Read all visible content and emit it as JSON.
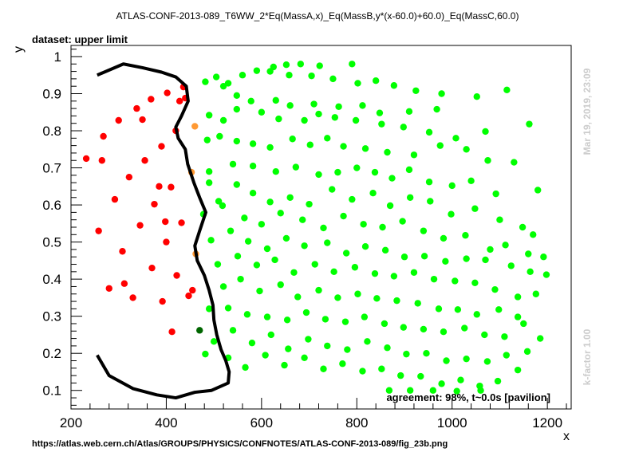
{
  "chart_data": {
    "type": "scatter",
    "title": "ATLAS-CONF-2013-089_T6WW_2*Eq(MassA,x)_Eq(MassB,y*(x-60.0)+60.0)_Eq(MassC,60.0)",
    "subtitle": "dataset: upper limit",
    "xlabel": "x",
    "ylabel": "y",
    "xlim": [
      200,
      1250
    ],
    "ylim": [
      0.05,
      1.03
    ],
    "xticks": [
      200,
      400,
      600,
      800,
      1000,
      1200
    ],
    "yticks": [
      0.1,
      0.2,
      0.3,
      0.4,
      0.5,
      0.6,
      0.7,
      0.8,
      0.9,
      1
    ],
    "grid": false,
    "colors": {
      "excluded": "#ff0000",
      "allowed": "#00ff00",
      "borderline": "#ff9933",
      "dark": "#006600",
      "contour": "#000000"
    },
    "series": [
      {
        "color": "#ff0000",
        "points": [
          [
            232,
            0.725
          ],
          [
            258,
            0.53
          ],
          [
            265,
            0.72
          ],
          [
            268,
            0.785
          ],
          [
            280,
            0.375
          ],
          [
            292,
            0.615
          ],
          [
            300,
            0.828
          ],
          [
            308,
            0.475
          ],
          [
            312,
            0.388
          ],
          [
            322,
            0.675
          ],
          [
            330,
            0.35
          ],
          [
            338,
            0.86
          ],
          [
            345,
            0.545
          ],
          [
            350,
            0.83
          ],
          [
            355,
            0.72
          ],
          [
            368,
            0.885
          ],
          [
            370,
            0.43
          ],
          [
            375,
            0.602
          ],
          [
            385,
            0.65
          ],
          [
            390,
            0.758
          ],
          [
            392,
            0.34
          ],
          [
            398,
            0.555
          ],
          [
            400,
            0.5
          ],
          [
            402,
            0.902
          ],
          [
            410,
            0.648
          ],
          [
            412,
            0.258
          ],
          [
            420,
            0.8
          ],
          [
            422,
            0.41
          ],
          [
            428,
            0.88
          ],
          [
            432,
            0.552
          ],
          [
            436,
            0.918
          ],
          [
            440,
            0.888
          ],
          [
            447,
            0.355
          ],
          [
            455,
            0.37
          ]
        ]
      },
      {
        "color": "#ff9933",
        "points": [
          [
            453,
            0.688
          ],
          [
            460,
            0.812
          ],
          [
            462,
            0.468
          ]
        ]
      },
      {
        "color": "#006600",
        "points": [
          [
            470,
            0.262
          ]
        ]
      },
      {
        "color": "#00ff00",
        "points": [
          [
            482,
            0.932
          ],
          [
            505,
            0.945
          ],
          [
            530,
            0.928
          ],
          [
            560,
            0.95
          ],
          [
            590,
            0.962
          ],
          [
            625,
            0.972
          ],
          [
            652,
            0.978
          ],
          [
            682,
            0.98
          ],
          [
            722,
            0.975
          ],
          [
            790,
            0.98
          ],
          [
            618,
            0.96
          ],
          [
            658,
            0.95
          ],
          [
            705,
            0.948
          ],
          [
            750,
            0.94
          ],
          [
            802,
            0.928
          ],
          [
            840,
            0.935
          ],
          [
            878,
            0.922
          ],
          [
            924,
            0.908
          ],
          [
            978,
            0.9
          ],
          [
            1052,
            0.892
          ],
          [
            1115,
            0.91
          ],
          [
            520,
            0.92
          ],
          [
            548,
            0.895
          ],
          [
            578,
            0.88
          ],
          [
            630,
            0.882
          ],
          [
            660,
            0.868
          ],
          [
            710,
            0.872
          ],
          [
            762,
            0.865
          ],
          [
            812,
            0.868
          ],
          [
            848,
            0.848
          ],
          [
            910,
            0.852
          ],
          [
            968,
            0.858
          ],
          [
            490,
            0.842
          ],
          [
            520,
            0.828
          ],
          [
            548,
            0.858
          ],
          [
            600,
            0.85
          ],
          [
            636,
            0.832
          ],
          [
            690,
            0.828
          ],
          [
            720,
            0.845
          ],
          [
            754,
            0.836
          ],
          [
            798,
            0.828
          ],
          [
            852,
            0.818
          ],
          [
            898,
            0.81
          ],
          [
            952,
            0.796
          ],
          [
            1008,
            0.78
          ],
          [
            1070,
            0.798
          ],
          [
            1162,
            0.818
          ],
          [
            486,
            0.775
          ],
          [
            512,
            0.785
          ],
          [
            548,
            0.772
          ],
          [
            582,
            0.765
          ],
          [
            618,
            0.755
          ],
          [
            665,
            0.778
          ],
          [
            702,
            0.762
          ],
          [
            738,
            0.78
          ],
          [
            772,
            0.758
          ],
          [
            818,
            0.752
          ],
          [
            864,
            0.742
          ],
          [
            920,
            0.735
          ],
          [
            975,
            0.76
          ],
          [
            1030,
            0.75
          ],
          [
            1075,
            0.72
          ],
          [
            1130,
            0.715
          ],
          [
            1180,
            0.64
          ],
          [
            490,
            0.69
          ],
          [
            540,
            0.71
          ],
          [
            582,
            0.705
          ],
          [
            630,
            0.69
          ],
          [
            672,
            0.702
          ],
          [
            720,
            0.682
          ],
          [
            760,
            0.688
          ],
          [
            800,
            0.7
          ],
          [
            838,
            0.688
          ],
          [
            874,
            0.672
          ],
          [
            910,
            0.695
          ],
          [
            952,
            0.662
          ],
          [
            1000,
            0.652
          ],
          [
            1040,
            0.665
          ],
          [
            1092,
            0.63
          ],
          [
            490,
            0.66
          ],
          [
            510,
            0.61
          ],
          [
            548,
            0.655
          ],
          [
            582,
            0.632
          ],
          [
            618,
            0.608
          ],
          [
            660,
            0.62
          ],
          [
            700,
            0.602
          ],
          [
            748,
            0.642
          ],
          [
            790,
            0.615
          ],
          [
            834,
            0.632
          ],
          [
            870,
            0.598
          ],
          [
            912,
            0.62
          ],
          [
            954,
            0.61
          ],
          [
            998,
            0.575
          ],
          [
            1048,
            0.59
          ],
          [
            1100,
            0.56
          ],
          [
            1148,
            0.54
          ],
          [
            1170,
            0.52
          ],
          [
            478,
            0.575
          ],
          [
            518,
            0.598
          ],
          [
            564,
            0.565
          ],
          [
            600,
            0.548
          ],
          [
            640,
            0.578
          ],
          [
            686,
            0.56
          ],
          [
            730,
            0.538
          ],
          [
            772,
            0.57
          ],
          [
            814,
            0.548
          ],
          [
            854,
            0.54
          ],
          [
            896,
            0.556
          ],
          [
            940,
            0.53
          ],
          [
            982,
            0.51
          ],
          [
            1028,
            0.518
          ],
          [
            1080,
            0.48
          ],
          [
            1112,
            0.492
          ],
          [
            1160,
            0.468
          ],
          [
            494,
            0.505
          ],
          [
            535,
            0.53
          ],
          [
            572,
            0.502
          ],
          [
            612,
            0.482
          ],
          [
            652,
            0.51
          ],
          [
            690,
            0.49
          ],
          [
            738,
            0.498
          ],
          [
            778,
            0.47
          ],
          [
            818,
            0.488
          ],
          [
            860,
            0.478
          ],
          [
            900,
            0.46
          ],
          [
            942,
            0.462
          ],
          [
            986,
            0.448
          ],
          [
            1030,
            0.455
          ],
          [
            1070,
            0.452
          ],
          [
            1124,
            0.436
          ],
          [
            1164,
            0.42
          ],
          [
            1192,
            0.46
          ],
          [
            508,
            0.44
          ],
          [
            550,
            0.462
          ],
          [
            590,
            0.438
          ],
          [
            628,
            0.452
          ],
          [
            668,
            0.418
          ],
          [
            712,
            0.44
          ],
          [
            752,
            0.42
          ],
          [
            796,
            0.432
          ],
          [
            838,
            0.415
          ],
          [
            878,
            0.408
          ],
          [
            920,
            0.418
          ],
          [
            962,
            0.4
          ],
          [
            1006,
            0.395
          ],
          [
            1048,
            0.39
          ],
          [
            1090,
            0.372
          ],
          [
            1138,
            0.352
          ],
          [
            1176,
            0.36
          ],
          [
            1198,
            0.412
          ],
          [
            520,
            0.38
          ],
          [
            556,
            0.4
          ],
          [
            596,
            0.368
          ],
          [
            640,
            0.385
          ],
          [
            676,
            0.352
          ],
          [
            720,
            0.37
          ],
          [
            760,
            0.35
          ],
          [
            802,
            0.36
          ],
          [
            842,
            0.348
          ],
          [
            884,
            0.342
          ],
          [
            928,
            0.335
          ],
          [
            972,
            0.32
          ],
          [
            1012,
            0.318
          ],
          [
            1052,
            0.305
          ],
          [
            1098,
            0.318
          ],
          [
            1138,
            0.298
          ],
          [
            490,
            0.32
          ],
          [
            530,
            0.322
          ],
          [
            570,
            0.305
          ],
          [
            612,
            0.298
          ],
          [
            654,
            0.29
          ],
          [
            694,
            0.31
          ],
          [
            734,
            0.292
          ],
          [
            776,
            0.285
          ],
          [
            816,
            0.298
          ],
          [
            858,
            0.28
          ],
          [
            898,
            0.27
          ],
          [
            940,
            0.265
          ],
          [
            982,
            0.258
          ],
          [
            1026,
            0.268
          ],
          [
            1068,
            0.25
          ],
          [
            1110,
            0.245
          ],
          [
            1150,
            0.28
          ],
          [
            1185,
            0.24
          ],
          [
            482,
            0.198
          ],
          [
            500,
            0.232
          ],
          [
            540,
            0.262
          ],
          [
            580,
            0.228
          ],
          [
            620,
            0.25
          ],
          [
            656,
            0.212
          ],
          [
            698,
            0.238
          ],
          [
            738,
            0.22
          ],
          [
            780,
            0.21
          ],
          [
            822,
            0.232
          ],
          [
            864,
            0.215
          ],
          [
            904,
            0.198
          ],
          [
            946,
            0.2
          ],
          [
            988,
            0.18
          ],
          [
            1030,
            0.185
          ],
          [
            1074,
            0.178
          ],
          [
            1114,
            0.195
          ],
          [
            1158,
            0.205
          ],
          [
            530,
            0.188
          ],
          [
            566,
            0.162
          ],
          [
            608,
            0.195
          ],
          [
            648,
            0.168
          ],
          [
            690,
            0.188
          ],
          [
            730,
            0.158
          ],
          [
            770,
            0.172
          ],
          [
            812,
            0.152
          ],
          [
            852,
            0.158
          ],
          [
            892,
            0.14
          ],
          [
            934,
            0.138
          ],
          [
            978,
            0.118
          ],
          [
            1018,
            0.128
          ],
          [
            1058,
            0.112
          ],
          [
            1096,
            0.125
          ],
          [
            1138,
            0.155
          ],
          [
            868,
            0.1
          ],
          [
            912,
            0.1
          ],
          [
            960,
            0.1
          ],
          [
            1010,
            0.098
          ],
          [
            1060,
            0.1
          ]
        ]
      }
    ],
    "contour": [
      [
        255,
        0.95
      ],
      [
        310,
        0.98
      ],
      [
        350,
        0.97
      ],
      [
        390,
        0.958
      ],
      [
        420,
        0.945
      ],
      [
        442,
        0.92
      ],
      [
        446,
        0.88
      ],
      [
        432,
        0.84
      ],
      [
        420,
        0.81
      ],
      [
        425,
        0.78
      ],
      [
        440,
        0.75
      ],
      [
        445,
        0.71
      ],
      [
        458,
        0.66
      ],
      [
        470,
        0.62
      ],
      [
        483,
        0.58
      ],
      [
        470,
        0.53
      ],
      [
        460,
        0.49
      ],
      [
        465,
        0.45
      ],
      [
        480,
        0.41
      ],
      [
        490,
        0.37
      ],
      [
        498,
        0.33
      ],
      [
        500,
        0.29
      ],
      [
        506,
        0.25
      ],
      [
        515,
        0.21
      ],
      [
        525,
        0.18
      ],
      [
        532,
        0.15
      ],
      [
        530,
        0.12
      ],
      [
        495,
        0.1
      ],
      [
        460,
        0.095
      ],
      [
        420,
        0.08
      ],
      [
        380,
        0.088
      ],
      [
        330,
        0.105
      ],
      [
        280,
        0.14
      ],
      [
        255,
        0.195
      ]
    ],
    "annotations": {
      "agreement": "agreement: 98%, t~0.0s [pavilion]",
      "timestamp": "Mar 19, 2019, 23:09",
      "kfactor": "k-factor 1.00",
      "url": "https://atlas.web.cern.ch/Atlas/GROUPS/PHYSICS/CONFNOTES/ATLAS-CONF-2013-089/fig_23b.png"
    }
  }
}
